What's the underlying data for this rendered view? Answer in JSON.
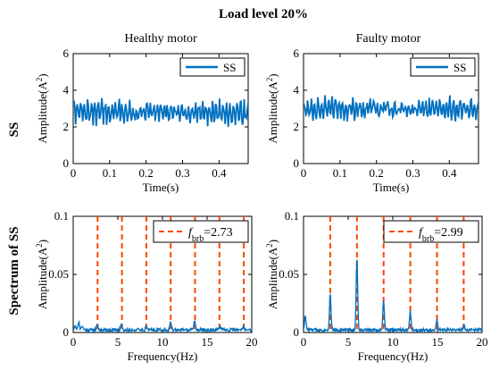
{
  "figure": {
    "title": "Load level 20%",
    "column_titles": [
      "Healthy motor",
      "Faulty motor"
    ],
    "row_labels": [
      "SS",
      "Spectrum of SS"
    ]
  },
  "colors": {
    "signal": "#0070C0",
    "harmonic": "#FF4500",
    "axis": "#000000"
  },
  "chart_data": [
    {
      "id": "ts_healthy",
      "type": "line",
      "title": "Healthy motor",
      "xlabel": "Time(s)",
      "ylabel": "Amplitude(A^2)",
      "xlim": [
        0,
        0.48
      ],
      "ylim": [
        0,
        6
      ],
      "xticks": [
        0,
        0.1,
        0.2,
        0.3,
        0.4
      ],
      "xtick_labels": [
        "0",
        "0.1",
        "0.2",
        "0.3",
        "0.4"
      ],
      "yticks": [
        0,
        2,
        4,
        6
      ],
      "ytick_labels": [
        "0",
        "2",
        "4",
        "6"
      ],
      "legend": [
        "SS"
      ],
      "legend_position": "top-right",
      "signal": {
        "mean": 2.8,
        "amplitude": 0.55,
        "seed": 7
      }
    },
    {
      "id": "ts_faulty",
      "type": "line",
      "title": "Faulty motor",
      "xlabel": "Time(s)",
      "ylabel": "Amplitude(A^2)",
      "xlim": [
        0,
        0.48
      ],
      "ylim": [
        0,
        6
      ],
      "xticks": [
        0,
        0.1,
        0.2,
        0.3,
        0.4
      ],
      "xtick_labels": [
        "0",
        "0.1",
        "0.2",
        "0.3",
        "0.4"
      ],
      "yticks": [
        0,
        2,
        4,
        6
      ],
      "ytick_labels": [
        "0",
        "2",
        "4",
        "6"
      ],
      "legend": [
        "SS"
      ],
      "legend_position": "top-right",
      "signal": {
        "mean": 3.0,
        "amplitude": 0.5,
        "seed": 13
      }
    },
    {
      "id": "sp_healthy",
      "type": "line",
      "xlabel": "Frequency(Hz)",
      "ylabel": "Amplitude(A^2)",
      "xlim": [
        0,
        20
      ],
      "ylim": [
        0,
        0.1
      ],
      "xticks": [
        0,
        5,
        10,
        15,
        20
      ],
      "xtick_labels": [
        "0",
        "5",
        "10",
        "15",
        "20"
      ],
      "yticks": [
        0,
        0.05,
        0.1
      ],
      "ytick_labels": [
        "0",
        "0.05",
        "0.1"
      ],
      "fbrb": 2.73,
      "legend_prefix": "f",
      "legend_sub": "brb",
      "legend_value": "=2.73",
      "legend_position": "top-right",
      "harmonic_lines": [
        2.73,
        5.46,
        8.19,
        10.92,
        13.65,
        16.38,
        19.11
      ],
      "peaks": [
        {
          "x": 0.2,
          "y": 0.004
        },
        {
          "x": 0.6,
          "y": 0.007
        },
        {
          "x": 1.0,
          "y": 0.004
        },
        {
          "x": 2.7,
          "y": 0.004
        },
        {
          "x": 5.4,
          "y": 0.005
        },
        {
          "x": 8.2,
          "y": 0.004
        },
        {
          "x": 10.9,
          "y": 0.006
        },
        {
          "x": 13.6,
          "y": 0.008
        },
        {
          "x": 16.4,
          "y": 0.003
        },
        {
          "x": 19.1,
          "y": 0.003
        }
      ],
      "noise_level": 0.003,
      "seed": 21
    },
    {
      "id": "sp_faulty",
      "type": "line",
      "xlabel": "Frequency(Hz)",
      "ylabel": "Amplitude(A^2)",
      "xlim": [
        0,
        20
      ],
      "ylim": [
        0,
        0.1
      ],
      "xticks": [
        0,
        5,
        10,
        15,
        20
      ],
      "xtick_labels": [
        "0",
        "5",
        "10",
        "15",
        "20"
      ],
      "yticks": [
        0,
        0.05,
        0.1
      ],
      "ytick_labels": [
        "0",
        "0.05",
        "0.1"
      ],
      "fbrb": 2.99,
      "legend_prefix": "f",
      "legend_sub": "brb",
      "legend_value": "=2.99",
      "legend_position": "top-right",
      "harmonic_lines": [
        2.99,
        5.98,
        8.97,
        11.96,
        14.95,
        17.94
      ],
      "peaks": [
        {
          "x": 0.2,
          "y": 0.012
        },
        {
          "x": 2.99,
          "y": 0.031
        },
        {
          "x": 5.98,
          "y": 0.061
        },
        {
          "x": 8.97,
          "y": 0.025
        },
        {
          "x": 11.96,
          "y": 0.016
        },
        {
          "x": 14.95,
          "y": 0.008
        },
        {
          "x": 17.94,
          "y": 0.004
        }
      ],
      "noise_level": 0.003,
      "seed": 33
    }
  ]
}
